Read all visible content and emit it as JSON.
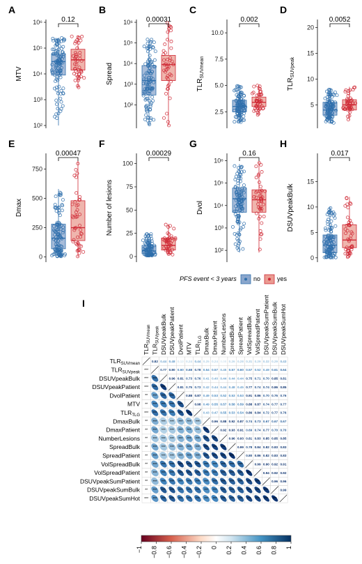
{
  "legend": {
    "title": "PFS event < 3 years",
    "no": "no",
    "yes": "yes",
    "color_no": "#2f6fac",
    "color_yes": "#cf2a36"
  },
  "chart_data": [
    {
      "type": "box",
      "panel": "A",
      "ylabel": "MTV",
      "scale": "log",
      "ylim_exp": [
        2,
        6
      ],
      "ticks": [
        "10²",
        "10³",
        "10⁴",
        "10⁵",
        "10⁶"
      ],
      "pvalue": "0.12",
      "groups": [
        {
          "name": "no",
          "q1": 9000,
          "median": 30000,
          "q3": 60000,
          "min": 100,
          "max": 250000
        },
        {
          "name": "yes",
          "q1": 14000,
          "median": 35000,
          "q3": 90000,
          "min": 3000,
          "max": 300000
        }
      ]
    },
    {
      "type": "box",
      "panel": "B",
      "ylabel": "Spread",
      "scale": "log",
      "ylim_exp": [
        1,
        6
      ],
      "ticks": [
        "10²",
        "10³",
        "10⁴",
        "10⁵",
        "10⁶"
      ],
      "pvalue": "0.00031",
      "groups": [
        {
          "name": "no",
          "q1": 300,
          "median": 1500,
          "q3": 8000,
          "min": 10,
          "max": 150000
        },
        {
          "name": "yes",
          "q1": 1500,
          "median": 9000,
          "q3": 25000,
          "min": 10,
          "max": 1000000
        }
      ]
    },
    {
      "type": "box",
      "panel": "C",
      "ylabel": "TLR_SUVmean",
      "ylabel_main": "TLR",
      "ylabel_sub": "SUVmean",
      "scale": "linear",
      "ylim": [
        1.2,
        11
      ],
      "ticks": [
        "2.5",
        "5.0",
        "7.5",
        "10.0"
      ],
      "tick_values": [
        2.5,
        5,
        7.5,
        10
      ],
      "pvalue": "0.002",
      "groups": [
        {
          "name": "no",
          "q1": 2.5,
          "median": 3.0,
          "q3": 3.6,
          "min": 1.5,
          "max": 5.0
        },
        {
          "name": "yes",
          "q1": 3.0,
          "median": 3.4,
          "q3": 3.9,
          "min": 2.2,
          "max": 5.0
        }
      ]
    },
    {
      "type": "box",
      "panel": "D",
      "ylabel": "TLR_SUVpeak",
      "ylabel_main": "TLR",
      "ylabel_sub": "SUVpeak",
      "scale": "linear",
      "ylim": [
        1,
        21
      ],
      "ticks": [
        "5",
        "10",
        "15",
        "20"
      ],
      "tick_values": [
        5,
        10,
        15,
        20
      ],
      "pvalue": "0.0052",
      "groups": [
        {
          "name": "no",
          "q1": 3.0,
          "median": 4.0,
          "q3": 5.5,
          "min": 1.5,
          "max": 8.0
        },
        {
          "name": "yes",
          "q1": 4.0,
          "median": 5.0,
          "q3": 6.0,
          "min": 2.0,
          "max": 8.5
        }
      ]
    },
    {
      "type": "box",
      "panel": "E",
      "ylabel": "Dmax",
      "scale": "linear",
      "ylim": [
        -20,
        860
      ],
      "ticks": [
        "0",
        "250",
        "500",
        "750"
      ],
      "tick_values": [
        0,
        250,
        500,
        750
      ],
      "pvalue": "0.00047",
      "groups": [
        {
          "name": "no",
          "q1": 70,
          "median": 160,
          "q3": 280,
          "min": 0,
          "max": 580
        },
        {
          "name": "yes",
          "q1": 140,
          "median": 250,
          "q3": 480,
          "min": 0,
          "max": 820
        }
      ]
    },
    {
      "type": "box",
      "panel": "F",
      "ylabel": "Number of lesions",
      "scale": "linear",
      "ylim": [
        -3,
        108
      ],
      "ticks": [
        "0",
        "25",
        "50",
        "75",
        "100"
      ],
      "tick_values": [
        0,
        25,
        50,
        75,
        100
      ],
      "pvalue": "0.00029",
      "groups": [
        {
          "name": "no",
          "q1": 3,
          "median": 6,
          "q3": 12,
          "min": 1,
          "max": 25
        },
        {
          "name": "yes",
          "q1": 7,
          "median": 12,
          "q3": 20,
          "min": 2,
          "max": 35
        }
      ]
    },
    {
      "type": "box",
      "panel": "G",
      "ylabel": "Dvol",
      "scale": "log",
      "ylim_exp": [
        1.6,
        6.2
      ],
      "ticks": [
        "10²",
        "10³",
        "10⁴",
        "10⁵",
        "10⁶"
      ],
      "pvalue": "0.16",
      "groups": [
        {
          "name": "no",
          "q1": 5000,
          "median": 20000,
          "q3": 60000,
          "min": 80,
          "max": 700000
        },
        {
          "name": "yes",
          "q1": 5000,
          "median": 18000,
          "q3": 50000,
          "min": 80,
          "max": 900000
        }
      ]
    },
    {
      "type": "box",
      "panel": "H",
      "ylabel": "DSUVpeakBulk",
      "scale": "linear",
      "ylim": [
        -0.3,
        20
      ],
      "ticks": [
        "0",
        "5",
        "10",
        "15"
      ],
      "tick_values": [
        0,
        5,
        10,
        15
      ],
      "pvalue": "0.017",
      "groups": [
        {
          "name": "no",
          "q1": 1.0,
          "median": 2.5,
          "q3": 4.5,
          "min": 0,
          "max": 10
        },
        {
          "name": "yes",
          "q1": 2.0,
          "median": 3.5,
          "q3": 6.5,
          "min": 0,
          "max": 12
        }
      ]
    },
    {
      "type": "heatmap",
      "panel": "I",
      "variables": [
        "TLR_SUVmean",
        "TLR_SUVpeak",
        "DSUVpeakBulk",
        "DSUVpeakPatient",
        "DvolPatient",
        "MTV",
        "TLR_TLG",
        "DmaxBulk",
        "DmaxPatient",
        "NumberLesions",
        "SpreadBulk",
        "SpreadPatient",
        "VolSpreadBulk",
        "VolSpreadPatient",
        "DSUVpeakSumPatient",
        "DSUVpeakSumBulk",
        "DSUVpeakSumHot"
      ],
      "labels": [
        {
          "main": "TLR",
          "sub": "SUVmean"
        },
        {
          "main": "TLR",
          "sub": "SUVpeak"
        },
        {
          "main": "DSUVpeakBulk",
          "sub": ""
        },
        {
          "main": "DSUVpeakPatient",
          "sub": ""
        },
        {
          "main": "DvolPatient",
          "sub": ""
        },
        {
          "main": "MTV",
          "sub": ""
        },
        {
          "main": "TLR",
          "sub": "TLG"
        },
        {
          "main": "DmaxBulk",
          "sub": ""
        },
        {
          "main": "DmaxPatient",
          "sub": ""
        },
        {
          "main": "NumberLesions",
          "sub": ""
        },
        {
          "main": "SpreadBulk",
          "sub": ""
        },
        {
          "main": "SpreadPatient",
          "sub": ""
        },
        {
          "main": "VolSpreadBulk",
          "sub": ""
        },
        {
          "main": "VolSpreadPatient",
          "sub": ""
        },
        {
          "main": "DSUVpeakSumPatient",
          "sub": ""
        },
        {
          "main": "DSUVpeakSumBulk",
          "sub": ""
        },
        {
          "main": "DSUVpeakSumHot",
          "sub": ""
        }
      ],
      "upper": [
        [
          "0.82",
          "0.44",
          "0.48",
          "0.13",
          "0.24",
          "0.44",
          "0.25",
          "0.24",
          "0.08",
          "0.26",
          "0.28",
          "0.31",
          "0.29",
          "0.32",
          "0.29",
          "0.43"
        ],
        [
          "0.77",
          "0.80",
          "0.60",
          "0.68",
          "0.78",
          "0.54",
          "0.57",
          "0.45",
          "0.57",
          "0.60",
          "0.57",
          "0.52",
          "0.49",
          "0.61",
          "0.64"
        ],
        [
          "0.96",
          "0.81",
          "0.73",
          "0.76",
          "0.41",
          "0.40",
          "0.44",
          "0.44",
          "0.44",
          "0.75",
          "0.71",
          "0.70",
          "0.85",
          "0.81"
        ],
        [
          "0.81",
          "0.75",
          "0.73",
          "0.42",
          "0.44",
          "0.44",
          "0.48",
          "0.45",
          "0.77",
          "0.74",
          "0.74",
          "0.86",
          "0.85"
        ],
        [
          "0.88",
          "0.87",
          "0.49",
          "0.53",
          "0.52",
          "0.53",
          "0.53",
          "0.91",
          "0.86",
          "0.70",
          "0.76",
          "0.76"
        ],
        [
          "0.98",
          "0.49",
          "0.55",
          "0.57",
          "0.58",
          "0.59",
          "0.88",
          "0.87",
          "0.74",
          "0.77",
          "0.77"
        ],
        [
          "0.43",
          "0.47",
          "0.55",
          "0.53",
          "0.54",
          "0.86",
          "0.84",
          "0.72",
          "0.77",
          "0.76"
        ],
        [
          "0.96",
          "0.88",
          "0.92",
          "0.87",
          "0.74",
          "0.73",
          "0.67",
          "0.67",
          "0.67"
        ],
        [
          "0.92",
          "0.93",
          "0.91",
          "0.69",
          "0.74",
          "0.77",
          "0.70",
          "0.70"
        ],
        [
          "0.96",
          "0.93",
          "0.81",
          "0.83",
          "0.85",
          "0.85",
          "0.85"
        ],
        [
          "0.99",
          "0.78",
          "0.84",
          "0.82",
          "0.83",
          "0.83"
        ],
        [
          "0.80",
          "0.86",
          "0.82",
          "0.83",
          "0.83"
        ],
        [
          "0.99",
          "0.90",
          "0.92",
          "0.91"
        ],
        [
          "0.94",
          "0.92",
          "0.92"
        ],
        [
          "0.96",
          "0.96"
        ],
        [
          "0.99"
        ],
        []
      ],
      "lower_stars": [
        "***",
        "**",
        "*"
      ],
      "colorbar": {
        "ticks": [
          "−1",
          "−0.8",
          "−0.6",
          "−0.4",
          "−0.2",
          "0",
          "0.2",
          "0.4",
          "0.6",
          "0.8",
          "1"
        ]
      }
    }
  ]
}
